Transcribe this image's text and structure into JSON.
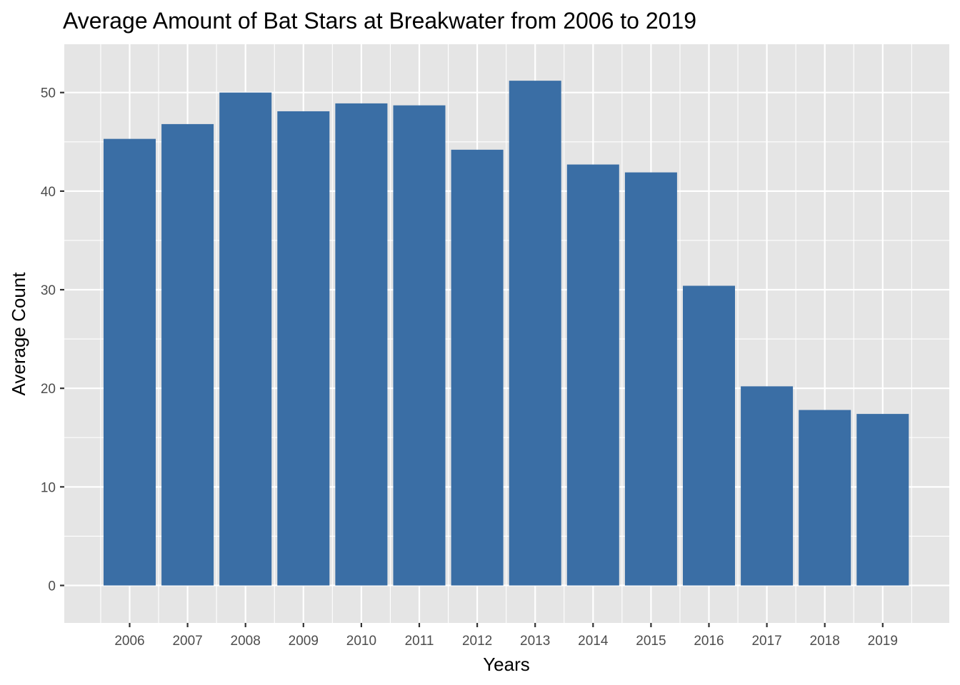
{
  "chart_data": {
    "type": "bar",
    "title": "Average Amount of Bat Stars at Breakwater from 2006 to 2019",
    "xlabel": "Years",
    "ylabel": "Average Count",
    "categories": [
      "2006",
      "2007",
      "2008",
      "2009",
      "2010",
      "2011",
      "2012",
      "2013",
      "2014",
      "2015",
      "2016",
      "2017",
      "2018",
      "2019"
    ],
    "values": [
      45.3,
      46.8,
      50.0,
      48.1,
      48.9,
      48.7,
      44.2,
      51.2,
      42.7,
      41.9,
      30.4,
      20.2,
      17.8,
      17.4
    ],
    "ylim": [
      -3.8,
      54.9
    ],
    "yticks": [
      "0",
      "10",
      "20",
      "30",
      "40",
      "50"
    ],
    "grid": true,
    "colors": {
      "bar": "#3a6ea5",
      "panel": "#e5e5e5",
      "grid": "#ffffff"
    }
  }
}
